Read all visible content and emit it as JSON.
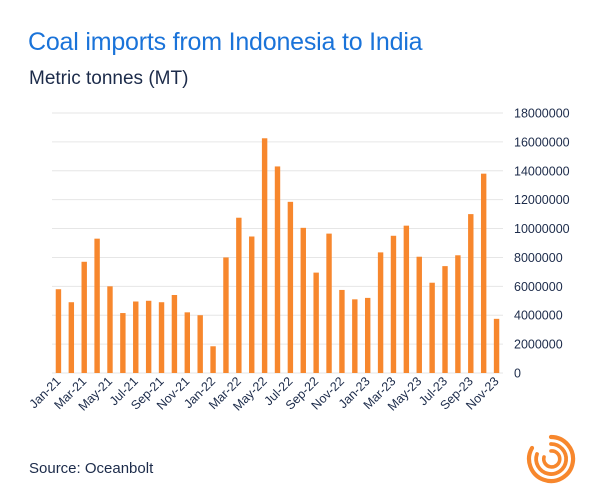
{
  "header": {
    "title": "Coal imports from Indonesia to India",
    "subtitle": "Metric tonnes (MT)"
  },
  "footer": {
    "source": "Source: Oceanbolt"
  },
  "logo": {
    "icon": "oceanbolt-logo-icon"
  },
  "colors": {
    "bar": "#f7872d",
    "title": "#1a73d9",
    "text": "#1c2b4a",
    "grid": "#e6e6e6",
    "logo": "#f7872d"
  },
  "chart_data": {
    "type": "bar",
    "title": "Coal imports from Indonesia to India",
    "subtitle": "Metric tonnes (MT)",
    "xlabel": "",
    "ylabel": "",
    "ylim": [
      0,
      18000000
    ],
    "yticks": [
      0,
      2000000,
      4000000,
      6000000,
      8000000,
      10000000,
      12000000,
      14000000,
      16000000,
      18000000
    ],
    "y_axis_side": "right",
    "grid": true,
    "legend": "none",
    "categories": [
      "Jan-21",
      "Feb-21",
      "Mar-21",
      "Apr-21",
      "May-21",
      "Jun-21",
      "Jul-21",
      "Aug-21",
      "Sep-21",
      "Oct-21",
      "Nov-21",
      "Dec-21",
      "Jan-22",
      "Feb-22",
      "Mar-22",
      "Apr-22",
      "May-22",
      "Jun-22",
      "Jul-22",
      "Aug-22",
      "Sep-22",
      "Oct-22",
      "Nov-22",
      "Dec-22",
      "Jan-23",
      "Feb-23",
      "Mar-23",
      "Apr-23",
      "May-23",
      "Jun-23",
      "Jul-23",
      "Aug-23",
      "Sep-23",
      "Oct-23",
      "Nov-23"
    ],
    "tick_labels": [
      "Jan-21",
      "",
      "Mar-21",
      "",
      "May-21",
      "",
      "Jul-21",
      "",
      "Sep-21",
      "",
      "Nov-21",
      "",
      "Jan-22",
      "",
      "Mar-22",
      "",
      "May-22",
      "",
      "Jul-22",
      "",
      "Sep-22",
      "",
      "Nov-22",
      "",
      "Jan-23",
      "",
      "Mar-23",
      "",
      "May-23",
      "",
      "Jul-23",
      "",
      "Sep-23",
      "",
      "Nov-23"
    ],
    "values": [
      5800000,
      4900000,
      7700000,
      9300000,
      6000000,
      4150000,
      4950000,
      5000000,
      4900000,
      5400000,
      4200000,
      4000000,
      1850000,
      8000000,
      10750000,
      9450000,
      16250000,
      14300000,
      11850000,
      10050000,
      6950000,
      9650000,
      5750000,
      5100000,
      5200000,
      8350000,
      9500000,
      10200000,
      8050000,
      6250000,
      7400000,
      8150000,
      11000000,
      13800000,
      3750000
    ]
  }
}
